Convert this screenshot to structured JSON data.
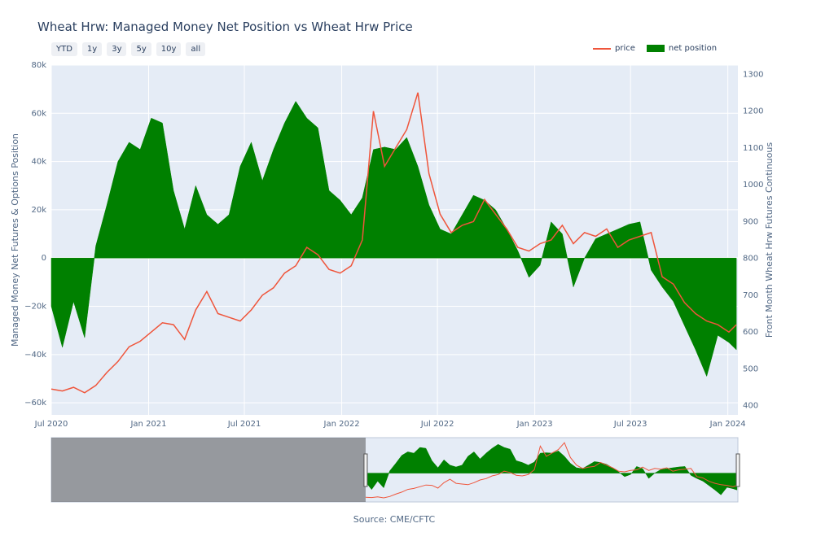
{
  "title": "Wheat Hrw: Managed Money Net Position vs Wheat Hrw Price",
  "range_buttons": [
    "YTD",
    "1y",
    "3y",
    "5y",
    "10y",
    "all"
  ],
  "legend": [
    "price",
    "net position"
  ],
  "source": "Source: CME/CFTC",
  "colors": {
    "price": "#ef553b",
    "net_position": "#008000",
    "plot_bg": "#e5ecf6"
  },
  "chart_data": {
    "type": "line",
    "title": "Wheat Hrw: Managed Money Net Position vs Wheat Hrw Price",
    "xlabel": "",
    "ylabel": "Managed Money Net Futures & Options Position",
    "y2label": "Front Month Wheat Hrw Futures Continuous",
    "x_ticks": [
      "Jul 2020",
      "Jan 2021",
      "Jul 2021",
      "Jan 2022",
      "Jul 2022",
      "Jan 2023",
      "Jul 2023",
      "Jan 2024"
    ],
    "y_ticks": [
      "80k",
      "60k",
      "40k",
      "20k",
      "0",
      "−20k",
      "−40k",
      "−60k"
    ],
    "y2_ticks": [
      "1300",
      "1200",
      "1100",
      "1000",
      "900",
      "800",
      "700",
      "600",
      "500",
      "400"
    ],
    "ylim": [
      -65000,
      80000
    ],
    "y2lim": [
      375,
      1325
    ],
    "xlim": [
      "2020-07-01",
      "2024-01-20"
    ],
    "legend_position": "top-right",
    "grid": true,
    "series": [
      {
        "name": "net position",
        "type": "area",
        "x": [
          "2020-07-01",
          "2020-07-22",
          "2020-08-12",
          "2020-09-02",
          "2020-09-23",
          "2020-10-14",
          "2020-11-04",
          "2020-11-25",
          "2020-12-16",
          "2021-01-06",
          "2021-01-27",
          "2021-02-17",
          "2021-03-10",
          "2021-03-31",
          "2021-04-21",
          "2021-05-12",
          "2021-06-02",
          "2021-06-23",
          "2021-07-14",
          "2021-08-04",
          "2021-08-25",
          "2021-09-15",
          "2021-10-06",
          "2021-10-27",
          "2021-11-17",
          "2021-12-08",
          "2021-12-29",
          "2022-01-19",
          "2022-02-09",
          "2022-03-02",
          "2022-03-23",
          "2022-04-13",
          "2022-05-04",
          "2022-05-25",
          "2022-06-15",
          "2022-07-06",
          "2022-07-27",
          "2022-08-17",
          "2022-09-07",
          "2022-09-28",
          "2022-10-19",
          "2022-11-09",
          "2022-11-30",
          "2022-12-21",
          "2023-01-11",
          "2023-02-01",
          "2023-02-22",
          "2023-03-15",
          "2023-04-05",
          "2023-04-26",
          "2023-05-17",
          "2023-06-07",
          "2023-06-28",
          "2023-07-19",
          "2023-08-09",
          "2023-08-30",
          "2023-09-20",
          "2023-10-11",
          "2023-11-01",
          "2023-11-22",
          "2023-12-13",
          "2024-01-03",
          "2024-01-17"
        ],
        "values": [
          -20000,
          -37000,
          -18000,
          -33000,
          5000,
          22000,
          40000,
          48000,
          45000,
          58000,
          56000,
          28000,
          12000,
          30000,
          18000,
          14000,
          18000,
          38000,
          48000,
          32000,
          45000,
          56000,
          65000,
          58000,
          54000,
          28000,
          24000,
          18000,
          25000,
          45000,
          46000,
          45000,
          50000,
          38000,
          22000,
          12000,
          10000,
          18000,
          26000,
          24000,
          20000,
          12000,
          3000,
          -8000,
          -3000,
          15000,
          10000,
          -12000,
          0,
          8000,
          10000,
          12000,
          14000,
          15000,
          -5000,
          -12000,
          -18000,
          -28000,
          -38000,
          -49000,
          -32000,
          -35000,
          -38000
        ]
      },
      {
        "name": "price",
        "type": "line",
        "x": [
          "2020-07-01",
          "2020-07-22",
          "2020-08-12",
          "2020-09-02",
          "2020-09-23",
          "2020-10-14",
          "2020-11-04",
          "2020-11-25",
          "2020-12-16",
          "2021-01-06",
          "2021-01-27",
          "2021-02-17",
          "2021-03-10",
          "2021-03-31",
          "2021-04-21",
          "2021-05-12",
          "2021-06-02",
          "2021-06-23",
          "2021-07-14",
          "2021-08-04",
          "2021-08-25",
          "2021-09-15",
          "2021-10-06",
          "2021-10-27",
          "2021-11-17",
          "2021-12-08",
          "2021-12-29",
          "2022-01-19",
          "2022-02-09",
          "2022-03-02",
          "2022-03-23",
          "2022-04-13",
          "2022-05-04",
          "2022-05-25",
          "2022-06-15",
          "2022-07-06",
          "2022-07-27",
          "2022-08-17",
          "2022-09-07",
          "2022-09-28",
          "2022-10-19",
          "2022-11-09",
          "2022-11-30",
          "2022-12-21",
          "2023-01-11",
          "2023-02-01",
          "2023-02-22",
          "2023-03-15",
          "2023-04-05",
          "2023-04-26",
          "2023-05-17",
          "2023-06-07",
          "2023-06-28",
          "2023-07-19",
          "2023-08-09",
          "2023-08-30",
          "2023-09-20",
          "2023-10-11",
          "2023-11-01",
          "2023-11-22",
          "2023-12-13",
          "2024-01-03",
          "2024-01-17"
        ],
        "values": [
          445,
          440,
          450,
          435,
          455,
          490,
          520,
          560,
          575,
          600,
          625,
          620,
          580,
          660,
          710,
          650,
          640,
          630,
          660,
          700,
          720,
          760,
          780,
          830,
          810,
          770,
          760,
          780,
          850,
          1200,
          1050,
          1100,
          1150,
          1250,
          1030,
          920,
          870,
          890,
          900,
          960,
          920,
          880,
          830,
          820,
          840,
          850,
          890,
          840,
          870,
          860,
          880,
          830,
          850,
          860,
          870,
          750,
          730,
          680,
          650,
          630,
          620,
          600,
          620
        ]
      }
    ]
  }
}
